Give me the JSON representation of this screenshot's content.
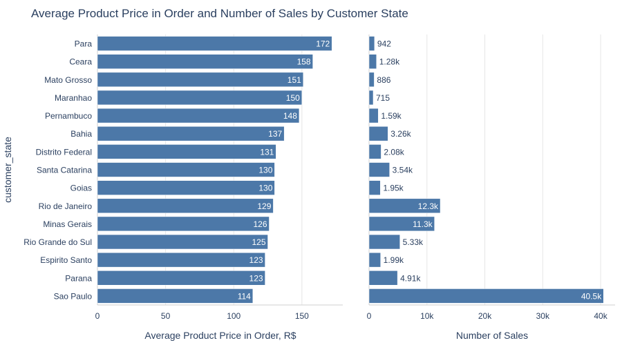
{
  "chart_data": {
    "title": "Average Product Price in Order and Number of Sales by Customer State",
    "y_axis_title": "customer_state",
    "categories": [
      "Para",
      "Ceara",
      "Mato Grosso",
      "Maranhao",
      "Pernambuco",
      "Bahia",
      "Distrito Federal",
      "Santa Catarina",
      "Goias",
      "Rio de Janeiro",
      "Minas Gerais",
      "Rio Grande do Sul",
      "Espirito Santo",
      "Parana",
      "Sao Paulo"
    ],
    "bar_color": "#4c78a8",
    "grid": true,
    "panels": [
      {
        "type": "bar",
        "orientation": "horizontal",
        "xlabel": "Average Product Price in Order, R$",
        "xlim": [
          0,
          180
        ],
        "xticks": [
          0,
          50,
          100,
          150
        ],
        "xtick_labels": [
          "0",
          "50",
          "100",
          "150"
        ],
        "values": [
          172,
          158,
          151,
          150,
          148,
          137,
          131,
          130,
          130,
          129,
          126,
          125,
          123,
          123,
          114
        ],
        "labels": [
          "172",
          "158",
          "151",
          "150",
          "148",
          "137",
          "131",
          "130",
          "130",
          "129",
          "126",
          "125",
          "123",
          "123",
          "114"
        ]
      },
      {
        "type": "bar",
        "orientation": "horizontal",
        "xlabel": "Number of Sales",
        "xlim": [
          0,
          42500
        ],
        "xticks": [
          0,
          10000,
          20000,
          30000,
          40000
        ],
        "xtick_labels": [
          "0",
          "10k",
          "20k",
          "30k",
          "40k"
        ],
        "values": [
          942,
          1280,
          886,
          715,
          1590,
          3260,
          2080,
          3540,
          1950,
          12300,
          11300,
          5330,
          1990,
          4910,
          40500
        ],
        "labels": [
          "942",
          "1.28k",
          "886",
          "715",
          "1.59k",
          "3.26k",
          "2.08k",
          "3.54k",
          "1.95k",
          "12.3k",
          "11.3k",
          "5.33k",
          "1.99k",
          "4.91k",
          "40.5k"
        ]
      }
    ]
  }
}
